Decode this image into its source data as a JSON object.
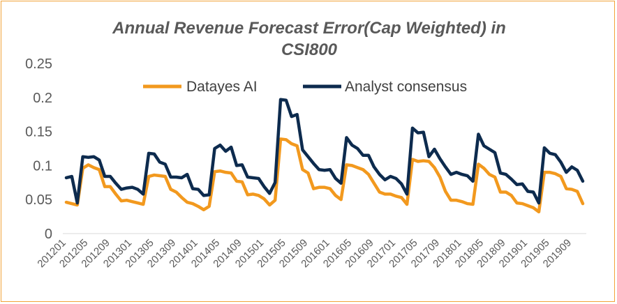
{
  "chart_data": {
    "type": "line",
    "title_line1": "Annual Revenue Forecast Error(Cap Weighted) in",
    "title_line2": "CSI800",
    "xlabel": "",
    "ylabel": "",
    "ylim": [
      0,
      0.25
    ],
    "yticks": [
      "0",
      "0.05",
      "0.1",
      "0.15",
      "0.2",
      "0.25"
    ],
    "ytick_values": [
      0,
      0.05,
      0.1,
      0.15,
      0.2,
      0.25
    ],
    "grid": false,
    "legend_position": "top-center",
    "x": [
      "201201",
      "201202",
      "201203",
      "201204",
      "201205",
      "201206",
      "201207",
      "201208",
      "201209",
      "201210",
      "201211",
      "201212",
      "201301",
      "201302",
      "201303",
      "201304",
      "201305",
      "201306",
      "201307",
      "201308",
      "201309",
      "201310",
      "201311",
      "201312",
      "201401",
      "201402",
      "201403",
      "201404",
      "201405",
      "201406",
      "201407",
      "201408",
      "201409",
      "201410",
      "201411",
      "201412",
      "201501",
      "201502",
      "201503",
      "201504",
      "201505",
      "201506",
      "201507",
      "201508",
      "201509",
      "201510",
      "201511",
      "201512",
      "201601",
      "201602",
      "201603",
      "201604",
      "201605",
      "201606",
      "201607",
      "201608",
      "201609",
      "201610",
      "201611",
      "201612",
      "201701",
      "201702",
      "201703",
      "201704",
      "201705",
      "201706",
      "201707",
      "201708",
      "201709",
      "201710",
      "201711",
      "201712",
      "201801",
      "201802",
      "201803",
      "201804",
      "201805",
      "201806",
      "201807",
      "201808",
      "201809",
      "201810",
      "201811",
      "201812",
      "201901",
      "201902",
      "201903",
      "201904",
      "201905",
      "201906",
      "201907",
      "201908",
      "201909",
      "201910",
      "201911"
    ],
    "xtick_labels": [
      "201201",
      "201205",
      "201209",
      "201301",
      "201305",
      "201309",
      "201401",
      "201405",
      "201409",
      "201501",
      "201505",
      "201509",
      "201601",
      "201605",
      "201609",
      "201701",
      "201705",
      "201709",
      "201801",
      "201805",
      "201809",
      "201901",
      "201905",
      "201909"
    ],
    "series": [
      {
        "name": "Datayes AI",
        "color": "#f2991e",
        "values": [
          0.046,
          0.044,
          0.042,
          0.096,
          0.101,
          0.097,
          0.094,
          0.069,
          0.069,
          0.058,
          0.048,
          0.049,
          0.047,
          0.045,
          0.043,
          0.084,
          0.086,
          0.085,
          0.084,
          0.065,
          0.061,
          0.053,
          0.046,
          0.044,
          0.04,
          0.035,
          0.04,
          0.091,
          0.092,
          0.09,
          0.089,
          0.077,
          0.076,
          0.057,
          0.058,
          0.056,
          0.051,
          0.042,
          0.049,
          0.139,
          0.138,
          0.132,
          0.129,
          0.094,
          0.089,
          0.066,
          0.068,
          0.068,
          0.066,
          0.056,
          0.05,
          0.101,
          0.1,
          0.097,
          0.094,
          0.087,
          0.074,
          0.061,
          0.058,
          0.058,
          0.055,
          0.053,
          0.043,
          0.109,
          0.106,
          0.107,
          0.106,
          0.097,
          0.083,
          0.062,
          0.049,
          0.049,
          0.047,
          0.044,
          0.043,
          0.102,
          0.096,
          0.087,
          0.083,
          0.061,
          0.061,
          0.056,
          0.045,
          0.044,
          0.041,
          0.038,
          0.032,
          0.09,
          0.09,
          0.088,
          0.084,
          0.066,
          0.065,
          0.062,
          0.044
        ]
      },
      {
        "name": "Analyst consensus",
        "color": "#0d2b4e",
        "values": [
          0.082,
          0.084,
          0.045,
          0.113,
          0.112,
          0.113,
          0.108,
          0.084,
          0.084,
          0.074,
          0.065,
          0.067,
          0.068,
          0.065,
          0.058,
          0.118,
          0.117,
          0.105,
          0.102,
          0.083,
          0.083,
          0.082,
          0.087,
          0.066,
          0.065,
          0.056,
          0.057,
          0.125,
          0.13,
          0.121,
          0.127,
          0.1,
          0.101,
          0.083,
          0.082,
          0.081,
          0.069,
          0.059,
          0.075,
          0.197,
          0.196,
          0.172,
          0.175,
          0.123,
          0.113,
          0.103,
          0.094,
          0.093,
          0.094,
          0.081,
          0.074,
          0.141,
          0.13,
          0.125,
          0.115,
          0.115,
          0.098,
          0.087,
          0.079,
          0.084,
          0.081,
          0.073,
          0.058,
          0.155,
          0.148,
          0.149,
          0.113,
          0.124,
          0.11,
          0.098,
          0.087,
          0.09,
          0.087,
          0.085,
          0.077,
          0.146,
          0.129,
          0.124,
          0.119,
          0.089,
          0.087,
          0.08,
          0.072,
          0.073,
          0.062,
          0.061,
          0.045,
          0.126,
          0.118,
          0.116,
          0.105,
          0.09,
          0.098,
          0.093,
          0.077
        ]
      }
    ]
  }
}
